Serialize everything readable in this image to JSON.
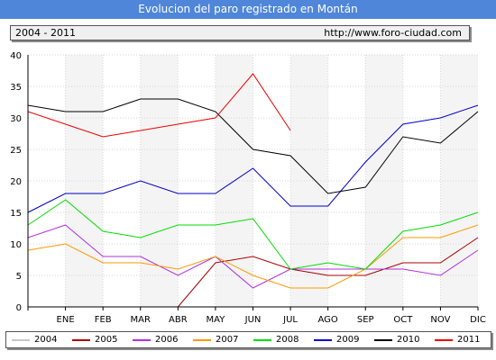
{
  "header": {
    "title": "Evolucion del paro registrado en Montán",
    "period": "2004 - 2011",
    "url": "http://www.foro-ciudad.com"
  },
  "chart_data": {
    "type": "line",
    "title": "Evolucion del paro registrado en Montán",
    "xlabel": "",
    "ylabel": "",
    "x_points": [
      "",
      "ENE",
      "FEB",
      "MAR",
      "ABR",
      "MAY",
      "JUN",
      "JUL",
      "AGO",
      "SEP",
      "OCT",
      "NOV",
      "DIC"
    ],
    "ylim": [
      0,
      40
    ],
    "yticks": [
      0,
      5,
      10,
      15,
      20,
      25,
      30,
      35,
      40
    ],
    "grid": true,
    "legend_position": "bottom",
    "series": [
      {
        "name": "2004",
        "color": "#c8c8c8",
        "values": [
          null,
          null,
          null,
          null,
          null,
          null,
          null,
          null,
          null,
          null,
          null,
          null,
          null
        ]
      },
      {
        "name": "2005",
        "color": "#aa0000",
        "values": [
          null,
          null,
          null,
          null,
          0,
          7,
          8,
          6,
          5,
          5,
          7,
          7,
          11
        ]
      },
      {
        "name": "2006",
        "color": "#b030e0",
        "values": [
          11,
          13,
          8,
          8,
          5,
          8,
          3,
          6,
          6,
          6,
          6,
          5,
          9
        ]
      },
      {
        "name": "2007",
        "color": "#ff9900",
        "values": [
          9,
          10,
          7,
          7,
          6,
          8,
          5,
          3,
          3,
          6,
          11,
          11,
          13
        ]
      },
      {
        "name": "2008",
        "color": "#00dd00",
        "values": [
          13,
          17,
          12,
          11,
          13,
          13,
          14,
          6,
          7,
          6,
          12,
          13,
          15
        ]
      },
      {
        "name": "2009",
        "color": "#0000cc",
        "values": [
          15,
          18,
          18,
          20,
          18,
          18,
          22,
          16,
          16,
          23,
          29,
          30,
          32
        ]
      },
      {
        "name": "2010",
        "color": "#000000",
        "values": [
          32,
          31,
          31,
          33,
          33,
          31,
          25,
          24,
          18,
          19,
          27,
          26,
          31
        ]
      },
      {
        "name": "2011",
        "color": "#ee0000",
        "values": [
          31,
          29,
          27,
          28,
          29,
          30,
          37,
          28,
          null,
          null,
          null,
          null,
          null
        ]
      }
    ]
  }
}
